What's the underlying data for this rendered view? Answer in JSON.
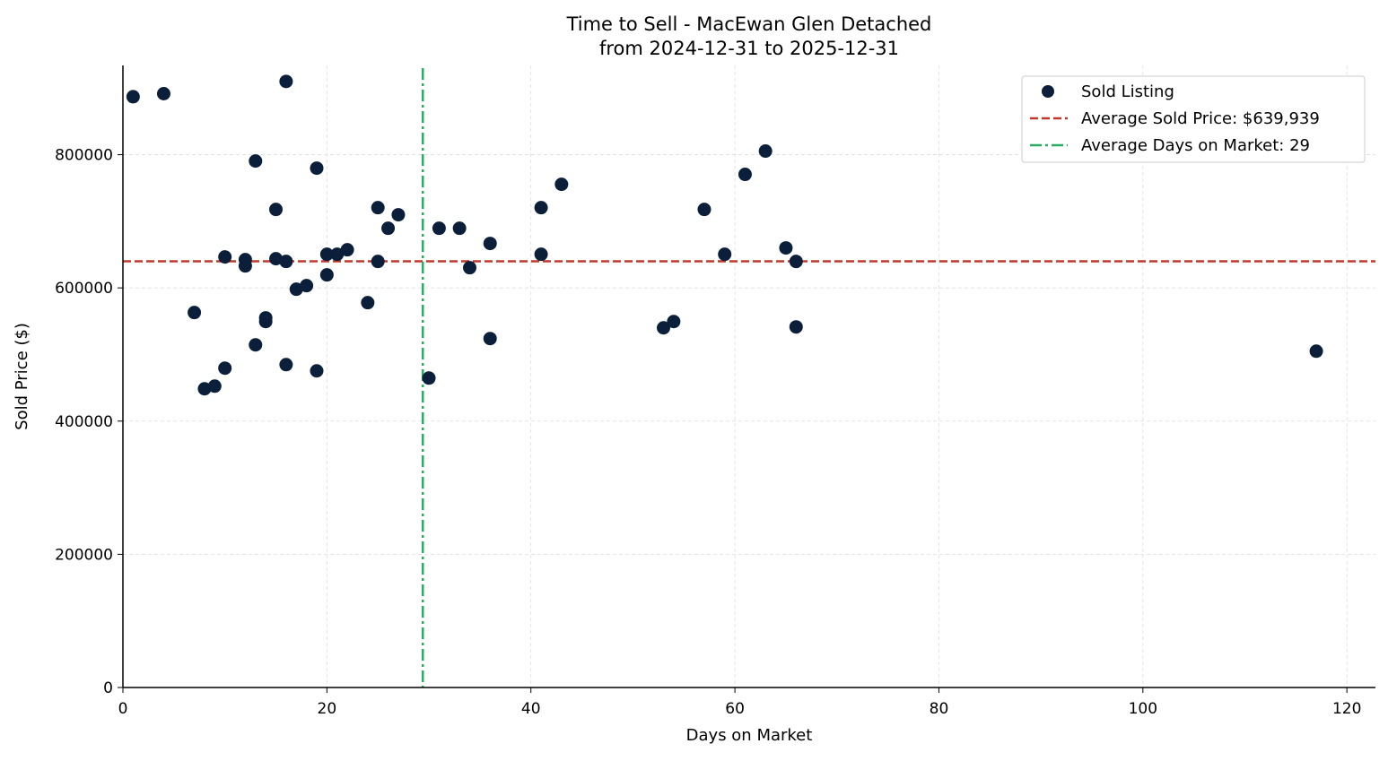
{
  "chart_data": {
    "type": "scatter",
    "title": "Time to Sell - MacEwan Glen Detached",
    "subtitle": "from 2024-12-31 to 2025-12-31",
    "xlabel": "Days on Market",
    "ylabel": "Sold Price ($)",
    "xlim": [
      0,
      122.8
    ],
    "ylim": [
      0,
      934000
    ],
    "xticks": [
      0,
      20,
      40,
      60,
      80,
      100,
      120
    ],
    "yticks": [
      0,
      200000,
      400000,
      600000,
      800000
    ],
    "xtick_labels": [
      "0",
      "20",
      "40",
      "60",
      "80",
      "100",
      "120"
    ],
    "ytick_labels": [
      "0",
      "200000",
      "400000",
      "600000",
      "800000"
    ],
    "grid": true,
    "legend_position": "top-right",
    "colors": {
      "points": "#0b1f3a",
      "avg_price": "#c0392b",
      "avg_days": "#27ae60"
    },
    "series": [
      {
        "name": "Sold Listing",
        "points": [
          [
            1,
            887000
          ],
          [
            4,
            891600
          ],
          [
            16,
            910000
          ],
          [
            13,
            790500
          ],
          [
            19,
            779800
          ],
          [
            15,
            717800
          ],
          [
            25,
            720500
          ],
          [
            27,
            709800
          ],
          [
            26,
            689500
          ],
          [
            31,
            689500
          ],
          [
            33,
            689500
          ],
          [
            41,
            720500
          ],
          [
            43,
            755500
          ],
          [
            36,
            666700
          ],
          [
            34,
            630300
          ],
          [
            41,
            650500
          ],
          [
            10,
            646500
          ],
          [
            12,
            642400
          ],
          [
            12,
            633000
          ],
          [
            15,
            643800
          ],
          [
            16,
            639700
          ],
          [
            20,
            650500
          ],
          [
            21,
            650500
          ],
          [
            22,
            657200
          ],
          [
            25,
            639700
          ],
          [
            20,
            619500
          ],
          [
            17,
            598000
          ],
          [
            18,
            603400
          ],
          [
            7,
            563000
          ],
          [
            14,
            555000
          ],
          [
            14,
            549500
          ],
          [
            24,
            577800
          ],
          [
            13,
            514500
          ],
          [
            10,
            479500
          ],
          [
            8,
            448500
          ],
          [
            9,
            452500
          ],
          [
            16,
            484800
          ],
          [
            19,
            475400
          ],
          [
            30,
            464600
          ],
          [
            36,
            523900
          ],
          [
            53,
            540000
          ],
          [
            54,
            549500
          ],
          [
            57,
            717800
          ],
          [
            59,
            650500
          ],
          [
            61,
            770400
          ],
          [
            63,
            805400
          ],
          [
            65,
            660000
          ],
          [
            66,
            639700
          ],
          [
            66,
            541400
          ],
          [
            117,
            505000
          ]
        ]
      }
    ],
    "reference_lines": [
      {
        "name": "Average Sold Price: $639,939",
        "orientation": "horizontal",
        "value": 639939,
        "style": "dashed"
      },
      {
        "name": "Average Days on Market: 29",
        "orientation": "vertical",
        "value": 29.4,
        "style": "dashdot"
      }
    ]
  }
}
